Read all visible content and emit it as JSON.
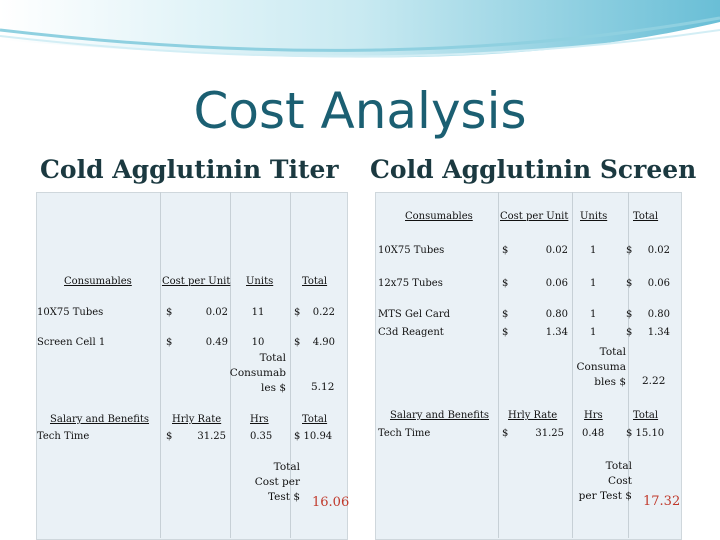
{
  "title": "Cost Analysis",
  "titer": {
    "subtitle": "Cold Agglutinin Titer",
    "headers": {
      "item": "Consumables",
      "cost": "Cost per Unit",
      "units": "Units",
      "total": "Total"
    },
    "rows": [
      {
        "item": "10X75 Tubes",
        "cur": "$",
        "cost": "0.02",
        "units": "11",
        "tcur": "$",
        "total": "0.22"
      },
      {
        "item": "Screen Cell 1",
        "cur": "$",
        "cost": "0.49",
        "units": "10",
        "tcur": "$",
        "total": "4.90"
      }
    ],
    "total_consumables": {
      "l1": "Total",
      "l2": "Consumab",
      "l3": "les $",
      "value": "5.12"
    },
    "labor_headers": {
      "item": "Salary and Benefits",
      "rate": "Hrly Rate",
      "hrs": "Hrs",
      "total": "Total"
    },
    "labor_row": {
      "item": "Tech Time",
      "cur": "$",
      "rate": "31.25",
      "hrs": "0.35",
      "total": "$ 10.94"
    },
    "cost_per_test": {
      "l1": "Total",
      "l2": "Cost per",
      "l3": "Test $",
      "value": "16.06"
    }
  },
  "screen": {
    "subtitle": "Cold Agglutinin Screen",
    "headers": {
      "item": "Consumables",
      "cost": "Cost per Unit",
      "units": "Units",
      "total": "Total"
    },
    "rows": [
      {
        "item": "10X75 Tubes",
        "cur": "$",
        "cost": "0.02",
        "units": "1",
        "tcur": "$",
        "total": "0.02"
      },
      {
        "item": "12x75 Tubes",
        "cur": "$",
        "cost": "0.06",
        "units": "1",
        "tcur": "$",
        "total": "0.06"
      },
      {
        "item": "MTS Gel Card",
        "cur": "$",
        "cost": "0.80",
        "units": "1",
        "tcur": "$",
        "total": "0.80"
      },
      {
        "item": "C3d Reagent",
        "cur": "$",
        "cost": "1.34",
        "units": "1",
        "tcur": "$",
        "total": "1.34"
      }
    ],
    "total_consumables": {
      "l1": "Total",
      "l2": "Consuma",
      "l3": "bles $",
      "value": "2.22"
    },
    "labor_headers": {
      "item": "Salary and Benefits",
      "rate": "Hrly Rate",
      "hrs": "Hrs",
      "total": "Total"
    },
    "labor_row": {
      "item": "Tech Time",
      "cur": "$",
      "rate": "31.25",
      "hrs": "0.48",
      "total": "$ 15.10"
    },
    "cost_per_test": {
      "l1": "Total",
      "l2": "Cost",
      "l3": "per Test $",
      "value": "17.32"
    }
  }
}
